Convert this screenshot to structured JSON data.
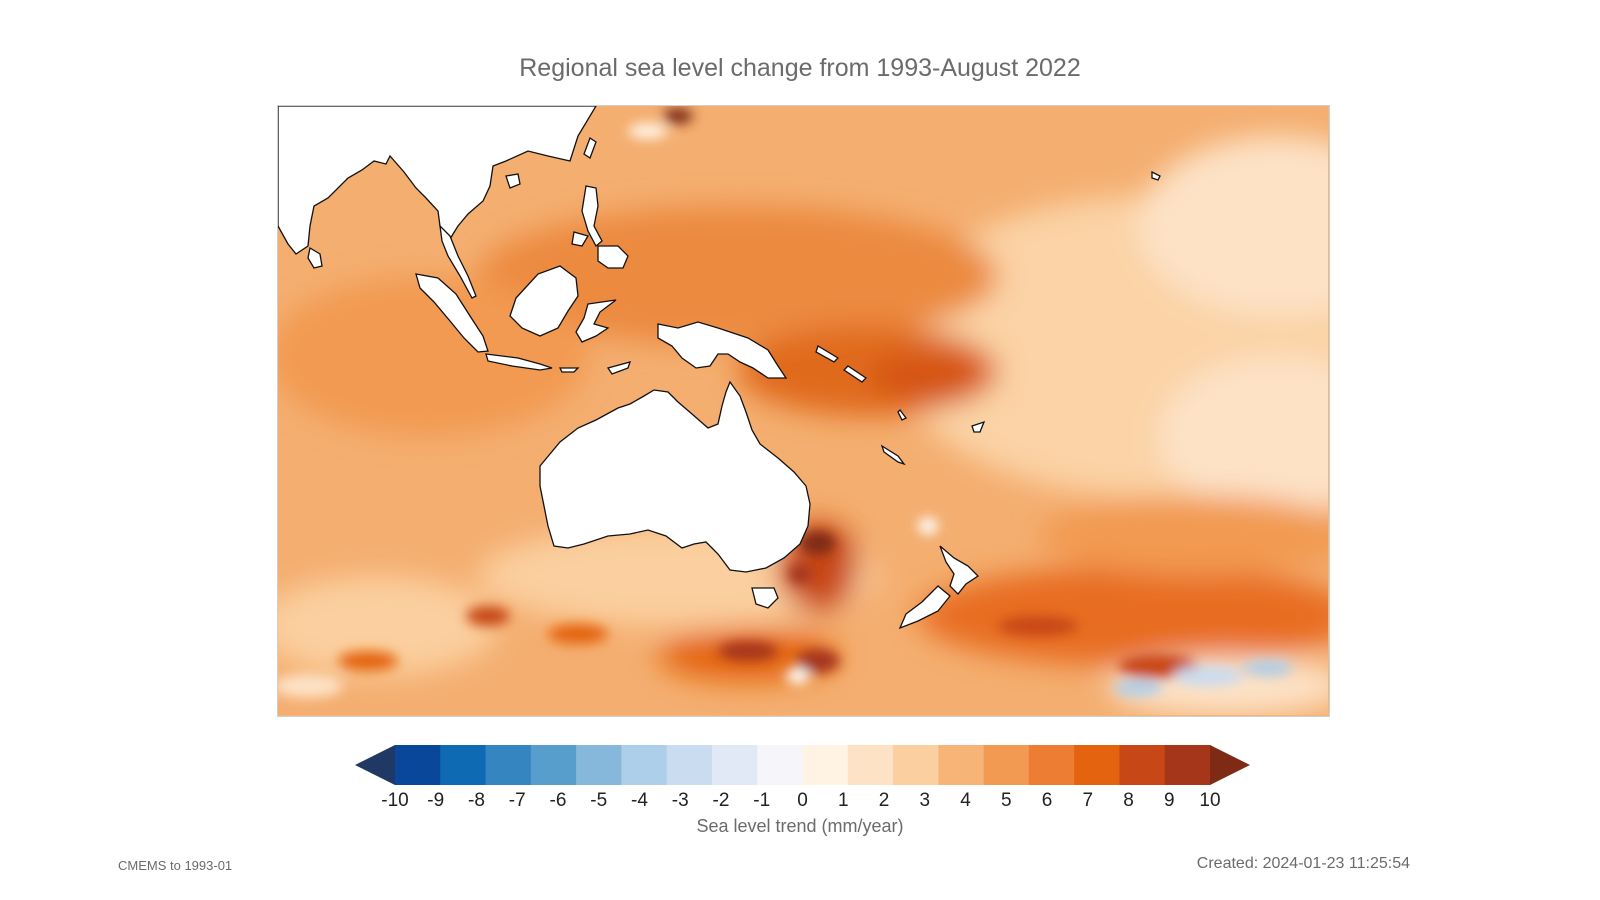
{
  "title": "Regional sea level change from 1993-August 2022",
  "colorbar": {
    "label": "Sea level trend (mm/year)",
    "ticks": [
      "-10",
      "-9",
      "-8",
      "-7",
      "-6",
      "-5",
      "-4",
      "-3",
      "-2",
      "-1",
      "0",
      "1",
      "2",
      "3",
      "4",
      "5",
      "6",
      "7",
      "8",
      "9",
      "10"
    ],
    "colors": [
      "#1f3864",
      "#08479a",
      "#0f6ab4",
      "#3585c0",
      "#589ecd",
      "#85b8da",
      "#aecfea",
      "#c9dcf0",
      "#e1e9f6",
      "#f5f5fa",
      "#fff3e3",
      "#fde2c6",
      "#fbcf9f",
      "#f6b577",
      "#f29a51",
      "#ec7d32",
      "#e4630f",
      "#c84716",
      "#a5361a",
      "#7e2a14"
    ]
  },
  "map": {
    "region": "Indo-Pacific / Australia",
    "ocean_base_color": "#f5b57a",
    "land_color": "#ffffff",
    "coastline_color": "#000000"
  },
  "footer": {
    "source": "CMEMS to 1993-01",
    "created": "Created: 2024-01-23 11:25:54"
  }
}
